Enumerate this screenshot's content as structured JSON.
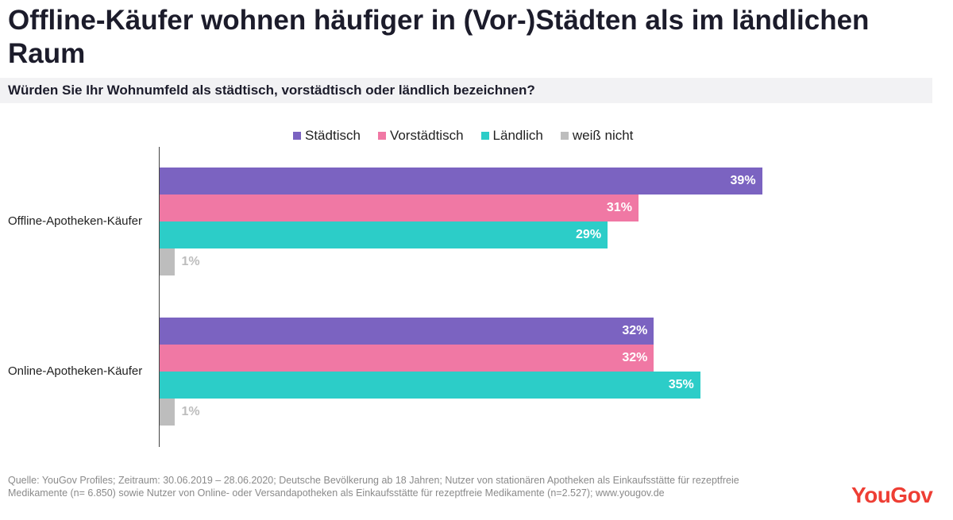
{
  "title": "Offline-Käufer wohnen häufiger in (Vor-)Städten als im ländlichen Raum",
  "subtitle": "Würden Sie Ihr Wohnumfeld als städtisch, vorstädtisch oder ländlich bezeichnen?",
  "colors": {
    "staedtisch": "#7b63c1",
    "vorstaedtisch": "#f078a4",
    "laendlich": "#2ccdc8",
    "weiss_nicht": "#bdbdbd",
    "brand": "#ee3e34"
  },
  "chart_data": {
    "type": "bar",
    "orientation": "horizontal",
    "categories": [
      "Offline-Apotheken-Käufer",
      "Online-Apotheken-Käufer"
    ],
    "series": [
      {
        "name": "Städtisch",
        "values": [
          39,
          32
        ],
        "labels": [
          "39%",
          "32%"
        ]
      },
      {
        "name": "Vorstädtisch",
        "values": [
          31,
          32
        ],
        "labels": [
          "31%",
          "32%"
        ]
      },
      {
        "name": "Ländlich",
        "values": [
          29,
          35
        ],
        "labels": [
          "29%",
          "35%"
        ]
      },
      {
        "name": "weiß nicht",
        "values": [
          1,
          1
        ],
        "labels": [
          "1%",
          "1%"
        ]
      }
    ],
    "unit": "%",
    "xlim": [
      0,
      40
    ],
    "legend": "top",
    "title": "Offline-Käufer wohnen häufiger in (Vor-)Städten als im ländlichen Raum",
    "subtitle": "Würden Sie Ihr Wohnumfeld als städtisch, vorstädtisch oder ländlich bezeichnen?"
  },
  "footer": {
    "line1": "Quelle: YouGov Profiles; Zeitraum: 30.06.2019 – 28.06.2020; Deutsche Bevölkerung ab 18 Jahren; Nutzer von stationären Apotheken als Einkaufsstätte für rezeptfreie",
    "line2": "Medikamente (n= 6.850) sowie Nutzer von Online- oder Versandapotheken als Einkaufsstätte für rezeptfreie Medikamente (n=2.527); www.yougov.de"
  },
  "logo": "YouGov"
}
